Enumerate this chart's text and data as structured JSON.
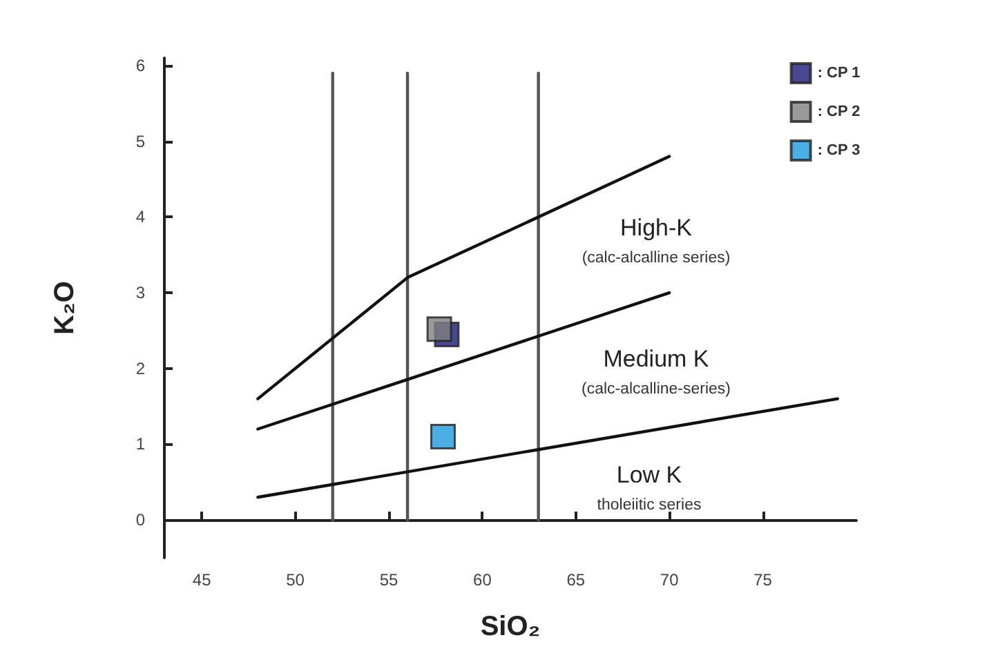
{
  "chart_data": {
    "type": "scatter",
    "xlabel": "SiO₂",
    "ylabel": "K₂O",
    "xlim": [
      43,
      80
    ],
    "ylim": [
      -0.5,
      6.1
    ],
    "xticks": [
      45,
      50,
      55,
      60,
      65,
      70,
      75
    ],
    "yticks": [
      0,
      1,
      2,
      3,
      4,
      5,
      6
    ],
    "legend": "top right",
    "marker": "square",
    "series": [
      {
        "type": "line",
        "marker": "none",
        "color": "#555555",
        "x": [
          52,
          52
        ],
        "values": [
          0,
          5.9
        ]
      },
      {
        "type": "line",
        "marker": "none",
        "color": "#555555",
        "x": [
          56,
          56
        ],
        "values": [
          0,
          5.9
        ]
      },
      {
        "type": "line",
        "marker": "none",
        "color": "#555555",
        "x": [
          63,
          63
        ],
        "values": [
          0,
          5.9
        ]
      },
      {
        "type": "line",
        "marker": "none",
        "color": "#111111",
        "x": [
          48,
          56,
          70
        ],
        "values": [
          1.6,
          3.2,
          4.8
        ]
      },
      {
        "type": "line",
        "marker": "none",
        "color": "#111111",
        "x": [
          48,
          70
        ],
        "values": [
          1.2,
          3.0
        ]
      },
      {
        "type": "line",
        "marker": "none",
        "color": "#111111",
        "x": [
          48,
          79
        ],
        "values": [
          0.3,
          1.6
        ]
      },
      {
        "name": ": CP 1",
        "color": "#1c1a78",
        "x": [
          58.1
        ],
        "values": [
          2.45
        ]
      },
      {
        "name": ": CP 2",
        "color": "#7f7f7f",
        "x": [
          57.7
        ],
        "values": [
          2.52
        ]
      },
      {
        "name": ": CP 3",
        "color": "#1e9be0",
        "x": [
          57.9
        ],
        "values": [
          1.1
        ]
      }
    ],
    "annotations": [
      "High-K\n(calc-alcalline series)",
      "Medium K\n(calc-alcalline-series)",
      "Low K\ntholeiitic series"
    ]
  }
}
